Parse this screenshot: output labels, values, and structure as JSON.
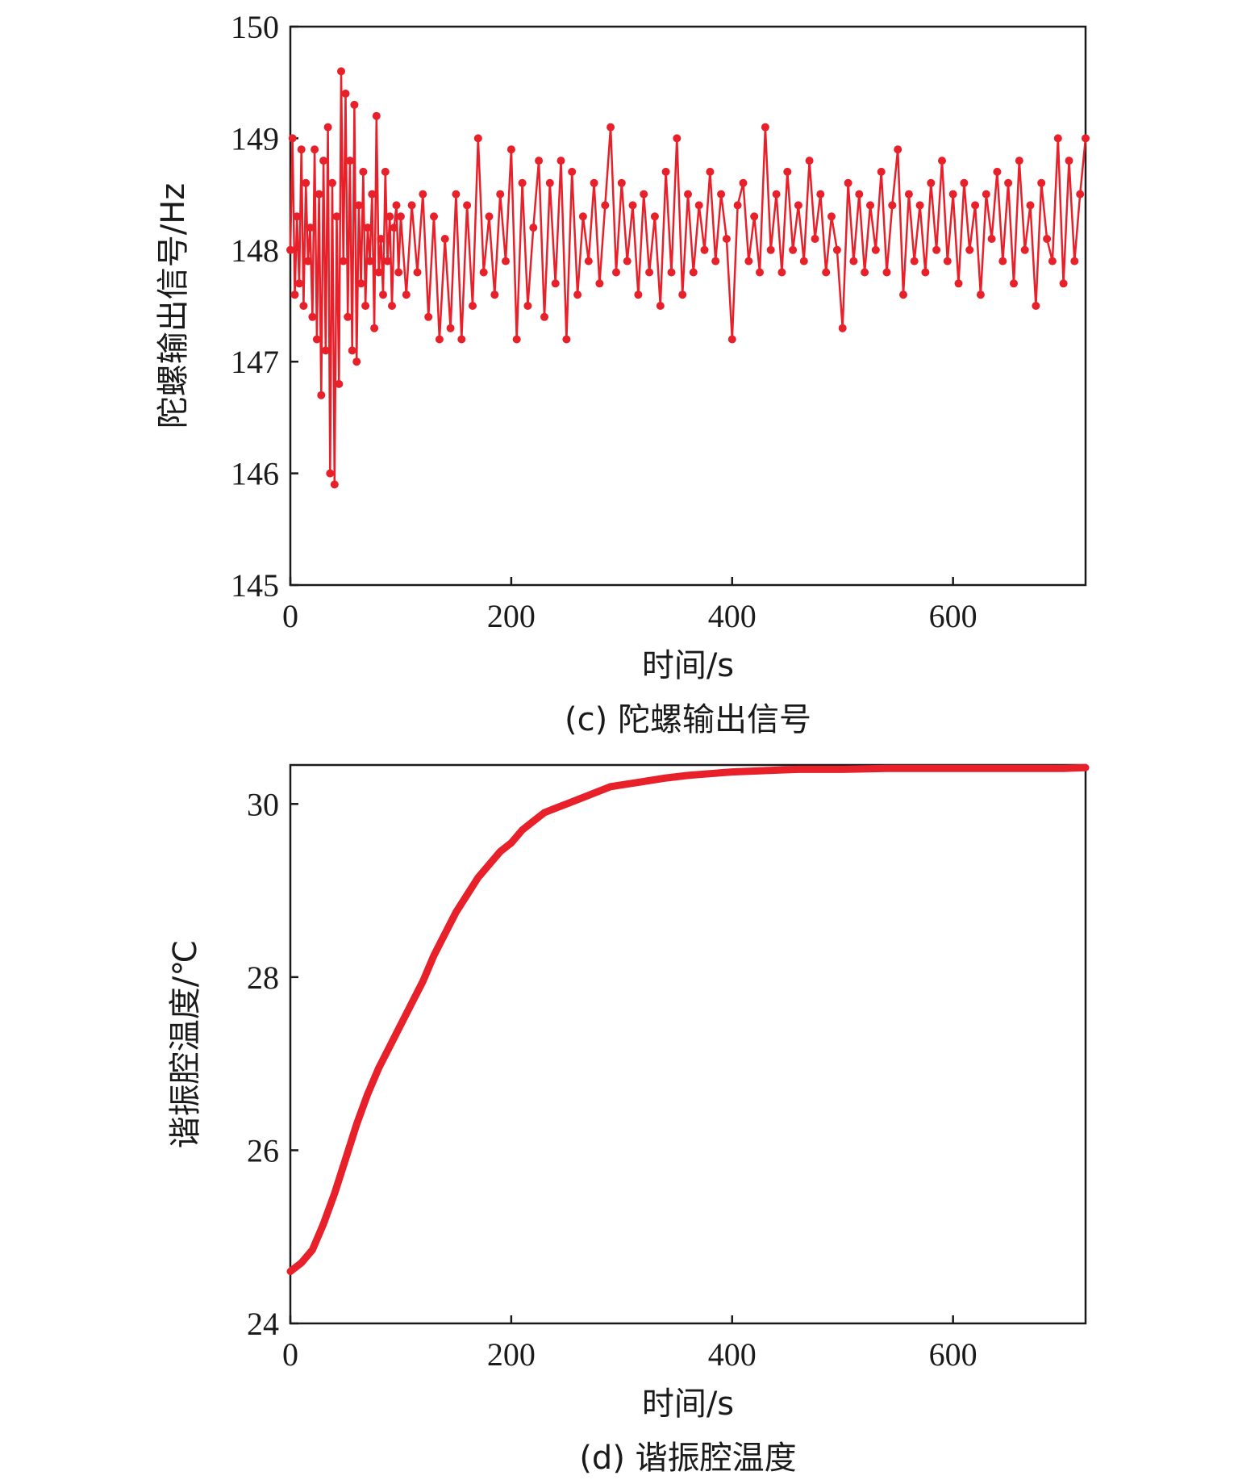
{
  "chart_data": [
    {
      "type": "line",
      "caption": "(c) 陀螺输出信号",
      "xlabel": "时间/s",
      "ylabel": "陀螺输出信号/Hz",
      "xlim": [
        0,
        720
      ],
      "ylim": [
        145,
        150
      ],
      "xticks": [
        0,
        200,
        400,
        600
      ],
      "yticks": [
        145,
        146,
        147,
        148,
        149,
        150
      ],
      "grid": false,
      "markers": true,
      "color": "#e8202a",
      "series": [
        {
          "x": [
            0,
            2,
            4,
            6,
            8,
            10,
            12,
            14,
            16,
            18,
            20,
            22,
            24,
            26,
            28,
            30,
            32,
            34,
            36,
            38,
            40,
            42,
            44,
            46,
            48,
            50,
            52,
            54,
            56,
            58,
            60,
            62,
            64,
            66,
            68,
            70,
            72,
            74,
            76,
            78,
            80,
            82,
            84,
            86,
            88,
            90,
            92,
            94,
            96,
            98,
            100,
            105,
            110,
            115,
            120,
            125,
            130,
            135,
            140,
            145,
            150,
            155,
            160,
            165,
            170,
            175,
            180,
            185,
            190,
            195,
            200,
            205,
            210,
            215,
            220,
            225,
            230,
            235,
            240,
            245,
            250,
            255,
            260,
            265,
            270,
            275,
            280,
            285,
            290,
            295,
            300,
            305,
            310,
            315,
            320,
            325,
            330,
            335,
            340,
            345,
            350,
            355,
            360,
            365,
            370,
            375,
            380,
            385,
            390,
            395,
            400,
            405,
            410,
            415,
            420,
            425,
            430,
            435,
            440,
            445,
            450,
            455,
            460,
            465,
            470,
            475,
            480,
            485,
            490,
            495,
            500,
            505,
            510,
            515,
            520,
            525,
            530,
            535,
            540,
            545,
            550,
            555,
            560,
            565,
            570,
            575,
            580,
            585,
            590,
            595,
            600,
            605,
            610,
            615,
            620,
            625,
            630,
            635,
            640,
            645,
            650,
            655,
            660,
            665,
            670,
            675,
            680,
            685,
            690,
            695,
            700,
            705,
            710,
            715,
            720
          ],
          "values": [
            148.0,
            149.0,
            147.6,
            148.3,
            147.7,
            148.9,
            147.5,
            148.6,
            147.9,
            148.2,
            147.4,
            148.9,
            147.2,
            148.5,
            146.7,
            148.8,
            147.1,
            149.1,
            146.0,
            148.6,
            145.9,
            148.3,
            146.8,
            149.6,
            147.9,
            149.4,
            147.4,
            148.8,
            147.1,
            149.3,
            147.0,
            148.4,
            147.7,
            148.7,
            147.5,
            148.2,
            147.9,
            148.5,
            147.3,
            149.2,
            147.8,
            148.1,
            147.6,
            148.7,
            147.9,
            148.3,
            147.5,
            148.2,
            148.4,
            147.8,
            148.3,
            147.6,
            148.4,
            147.8,
            148.5,
            147.4,
            148.3,
            147.2,
            148.1,
            147.3,
            148.5,
            147.2,
            148.4,
            147.5,
            149.0,
            147.8,
            148.3,
            147.6,
            148.5,
            147.9,
            148.9,
            147.2,
            148.6,
            147.5,
            148.2,
            148.8,
            147.4,
            148.6,
            147.7,
            148.8,
            147.2,
            148.7,
            147.6,
            148.3,
            147.9,
            148.6,
            147.7,
            148.4,
            149.1,
            147.8,
            148.6,
            147.9,
            148.4,
            147.6,
            148.5,
            147.8,
            148.3,
            147.5,
            148.7,
            147.8,
            149.0,
            147.6,
            148.5,
            147.8,
            148.4,
            148.0,
            148.7,
            147.9,
            148.5,
            148.1,
            147.2,
            148.4,
            148.6,
            147.9,
            148.3,
            147.8,
            149.1,
            148.0,
            148.5,
            147.8,
            148.7,
            148.0,
            148.4,
            147.9,
            148.8,
            148.1,
            148.5,
            147.8,
            148.3,
            148.0,
            147.3,
            148.6,
            147.9,
            148.5,
            147.8,
            148.4,
            148.0,
            148.7,
            147.8,
            148.4,
            148.9,
            147.6,
            148.5,
            147.9,
            148.4,
            147.8,
            148.6,
            148.0,
            148.8,
            147.9,
            148.5,
            147.7,
            148.6,
            148.0,
            148.4,
            147.6,
            148.5,
            148.1,
            148.7,
            147.9,
            148.6,
            147.7,
            148.8,
            148.0,
            148.4,
            147.5,
            148.6,
            148.1,
            147.9,
            149.0,
            147.7,
            148.8,
            147.9,
            148.5,
            149.0
          ]
        }
      ]
    },
    {
      "type": "line",
      "caption": "(d) 谐振腔温度",
      "xlabel": "时间/s",
      "ylabel": "谐振腔温度/℃",
      "xlim": [
        0,
        720
      ],
      "ylim": [
        24,
        30.45
      ],
      "xticks": [
        0,
        200,
        400,
        600
      ],
      "yticks": [
        24,
        26,
        28,
        30
      ],
      "grid": false,
      "markers": false,
      "color": "#e8202a",
      "series": [
        {
          "x": [
            0,
            10,
            20,
            30,
            40,
            50,
            60,
            70,
            80,
            90,
            100,
            110,
            120,
            130,
            140,
            150,
            160,
            170,
            180,
            190,
            200,
            210,
            220,
            230,
            240,
            250,
            260,
            270,
            280,
            290,
            300,
            320,
            340,
            360,
            380,
            400,
            420,
            440,
            460,
            480,
            500,
            540,
            580,
            620,
            660,
            700,
            720
          ],
          "values": [
            24.6,
            24.7,
            24.85,
            25.15,
            25.5,
            25.9,
            26.3,
            26.65,
            26.95,
            27.2,
            27.45,
            27.7,
            27.95,
            28.25,
            28.5,
            28.75,
            28.95,
            29.15,
            29.3,
            29.45,
            29.55,
            29.7,
            29.8,
            29.9,
            29.95,
            30.0,
            30.05,
            30.1,
            30.15,
            30.2,
            30.22,
            30.26,
            30.3,
            30.33,
            30.35,
            30.37,
            30.38,
            30.39,
            30.4,
            30.4,
            30.4,
            30.41,
            30.41,
            30.41,
            30.41,
            30.41,
            30.42
          ]
        }
      ]
    }
  ]
}
